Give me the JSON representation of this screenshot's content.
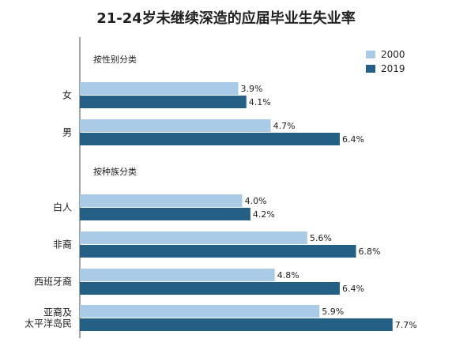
{
  "chart_data": {
    "type": "bar",
    "orientation": "horizontal",
    "title": "21-24岁未继续深造的应届毕业生失业率",
    "unit": "%",
    "grid": false,
    "legend_position": "top-right",
    "xlim": [
      0,
      8
    ],
    "colors": {
      "2000": "#a9cbe6",
      "2019": "#245f86"
    },
    "series": [
      {
        "name": "2000",
        "values": [
          3.9,
          4.7,
          4.0,
          5.6,
          4.8,
          5.9
        ]
      },
      {
        "name": "2019",
        "values": [
          4.1,
          6.4,
          4.2,
          6.8,
          6.4,
          7.7
        ]
      }
    ],
    "groups": [
      {
        "label": "按性别分类",
        "categories": [
          {
            "label": "女",
            "values": [
              3.9,
              4.1
            ]
          },
          {
            "label": "男",
            "values": [
              4.7,
              6.4
            ]
          }
        ]
      },
      {
        "label": "按种族分类",
        "categories": [
          {
            "label": "白人",
            "values": [
              4.0,
              4.2
            ]
          },
          {
            "label": "非裔",
            "values": [
              5.6,
              6.8
            ]
          },
          {
            "label": "西班牙裔",
            "values": [
              4.8,
              6.4
            ]
          },
          {
            "label": "亚裔及\n太平洋岛民",
            "values": [
              5.9,
              7.7
            ]
          }
        ]
      }
    ],
    "value_labels": [
      "3.9%",
      "4.1%",
      "4.7%",
      "6.4%",
      "4.0%",
      "4.2%",
      "5.6%",
      "6.8%",
      "4.8%",
      "6.4%",
      "5.9%",
      "7.7%"
    ]
  }
}
